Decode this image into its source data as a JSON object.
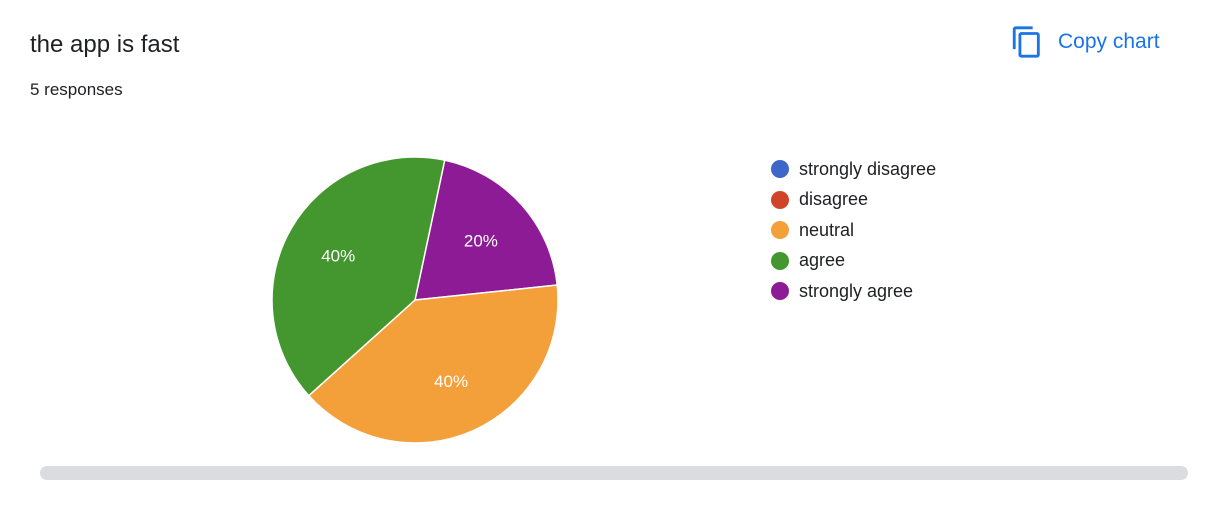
{
  "header": {
    "title": "the app is fast",
    "responses": "5 responses",
    "copy_label": "Copy chart",
    "copy_icon": "copy-icon",
    "accent_color": "#1a73e8"
  },
  "chart_data": {
    "type": "pie",
    "title": "the app is fast",
    "categories": [
      "strongly disagree",
      "disagree",
      "neutral",
      "agree",
      "strongly agree"
    ],
    "values": [
      0,
      0,
      40,
      40,
      20
    ],
    "labels": [
      "",
      "",
      "40%",
      "40%",
      "20%"
    ],
    "colors": [
      "#3f67c9",
      "#d0452a",
      "#f3a03a",
      "#44962f",
      "#8d1b95"
    ],
    "legend_position": "right",
    "start_angle_deg": 90,
    "direction": "clockwise"
  }
}
